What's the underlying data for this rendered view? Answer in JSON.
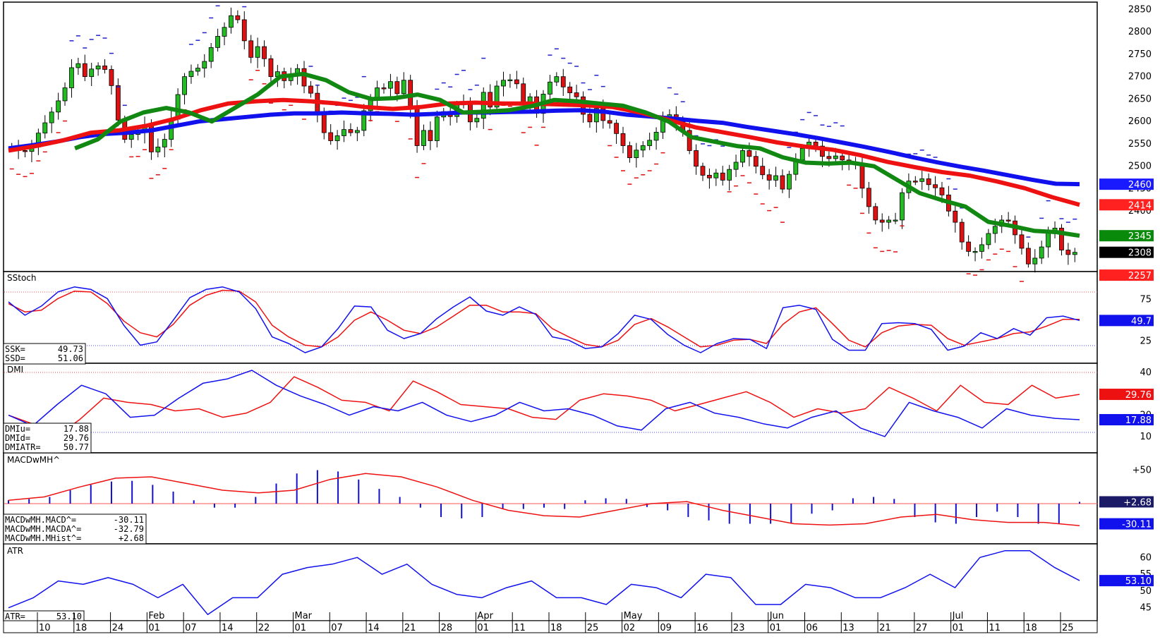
{
  "price_axis": {
    "ticks": [
      2850,
      2800,
      2750,
      2700,
      2650,
      2600,
      2550,
      2500,
      2450,
      2400
    ]
  },
  "stoch_axis": {
    "ticks": [
      75,
      25
    ]
  },
  "dmi_axis": {
    "ticks": [
      40,
      20,
      10
    ]
  },
  "macd_axis": {
    "ticks": [
      "+50"
    ]
  },
  "atr_axis": {
    "ticks": [
      60,
      55,
      50,
      45
    ]
  },
  "time_axis": {
    "day_labels": [
      "10",
      "18",
      "24",
      "01",
      "07",
      "14",
      "22",
      "01",
      "07",
      "14",
      "21",
      "28",
      "01",
      "11",
      "18",
      "25",
      "02",
      "09",
      "16",
      "23",
      "01",
      "06",
      "13",
      "21",
      "27",
      "01",
      "11",
      "18",
      "25"
    ],
    "month_labels": [
      "Feb",
      "Mar",
      "Apr",
      "May",
      "Jun",
      "Jul"
    ]
  },
  "panels": {
    "stoch": {
      "title": "SStoch",
      "legend": [
        {
          "name": "SSK=",
          "value": "49.73"
        },
        {
          "name": "SSD=",
          "value": "51.06"
        }
      ],
      "badge": "49.7"
    },
    "dmi": {
      "title": "DMI",
      "legend": [
        {
          "name": "DMIu=",
          "value": "17.88"
        },
        {
          "name": "DMId=",
          "value": "29.76"
        },
        {
          "name": "DMIATR=",
          "value": "50.77"
        }
      ],
      "badges": [
        "29.76",
        "17.88"
      ]
    },
    "macd": {
      "title": "MACDwMH^",
      "legend": [
        {
          "name": "MACDwMH.MACD^=",
          "value": "-30.11"
        },
        {
          "name": "MACDwMH.MACDA^=",
          "value": "-32.79"
        },
        {
          "name": "MACDwMH.MHist^=",
          "value": "+2.68"
        }
      ],
      "badges": [
        "+2.68",
        "-30.11"
      ]
    },
    "atr": {
      "title": "ATR",
      "legend": [
        {
          "name": "ATR=",
          "value": "53.10"
        }
      ],
      "badge": "53.10"
    }
  },
  "price_badges": [
    {
      "value": "2460",
      "color": "#1a1aff"
    },
    {
      "value": "2414",
      "color": "#ff2020"
    },
    {
      "value": "2345",
      "color": "#0a8a0a"
    },
    {
      "value": "2308",
      "color": "#000000"
    },
    {
      "value": "2257",
      "color": "#ff2020"
    }
  ],
  "colors": {
    "up": "#22bb22",
    "down": "#dd1111",
    "blue": "#1111ee",
    "red": "#ee1111",
    "green": "#118811",
    "sar": "#dd1111",
    "sar_hi": "#2222cc"
  },
  "chart_data": [
    {
      "type": "candlestick",
      "panel": "price",
      "ylim": [
        2265,
        2860
      ],
      "start_close": 2540,
      "closes": [
        2544,
        2535,
        2533,
        2543,
        2574,
        2597,
        2621,
        2646,
        2675,
        2720,
        2729,
        2700,
        2717,
        2724,
        2716,
        2680,
        2603,
        2560,
        2571,
        2575,
        2593,
        2532,
        2543,
        2560,
        2605,
        2660,
        2700,
        2712,
        2719,
        2734,
        2765,
        2790,
        2810,
        2836,
        2827,
        2780,
        2743,
        2767,
        2740,
        2700,
        2711,
        2691,
        2704,
        2718,
        2679,
        2663,
        2619,
        2575,
        2557,
        2568,
        2582,
        2575,
        2580,
        2624,
        2652,
        2675,
        2674,
        2689,
        2662,
        2692,
        2629,
        2546,
        2580,
        2557,
        2610,
        2622,
        2611,
        2637,
        2644,
        2599,
        2607,
        2665,
        2632,
        2679,
        2692,
        2693,
        2684,
        2640,
        2655,
        2618,
        2661,
        2688,
        2700,
        2677,
        2664,
        2655,
        2616,
        2599,
        2629,
        2602,
        2596,
        2573,
        2546,
        2519,
        2536,
        2546,
        2558,
        2576,
        2604,
        2615,
        2599,
        2580,
        2535,
        2500,
        2480,
        2474,
        2485,
        2469,
        2493,
        2509,
        2535,
        2522,
        2500,
        2481,
        2469,
        2479,
        2449,
        2482,
        2514,
        2540,
        2554,
        2545,
        2522,
        2517,
        2523,
        2514,
        2508,
        2504,
        2451,
        2410,
        2380,
        2375,
        2380,
        2380,
        2441,
        2467,
        2466,
        2472,
        2459,
        2452,
        2436,
        2400,
        2375,
        2331,
        2310,
        2310,
        2325,
        2350,
        2366,
        2380,
        2378,
        2347,
        2317,
        2282,
        2295,
        2320,
        2357,
        2362,
        2313,
        2303,
        2308
      ]
    },
    {
      "type": "line",
      "panel": "price",
      "name": "MA slow",
      "x_count": 158,
      "values": [
        2540,
        2547,
        2555,
        2565,
        2572,
        2575,
        2580,
        2590,
        2600,
        2605,
        2610,
        2615,
        2618,
        2618,
        2620,
        2618,
        2617,
        2615,
        2617,
        2620,
        2620,
        2621,
        2622,
        2624,
        2625,
        2622,
        2615,
        2611,
        2606,
        2601,
        2597,
        2588,
        2580,
        2572,
        2563,
        2553,
        2543,
        2532,
        2520,
        2509,
        2499,
        2490,
        2480,
        2470,
        2461,
        2460
      ]
    },
    {
      "type": "line",
      "panel": "price",
      "name": "MA mid",
      "values": [
        2535,
        2545,
        2558,
        2575,
        2580,
        2590,
        2605,
        2625,
        2640,
        2645,
        2648,
        2645,
        2640,
        2632,
        2628,
        2632,
        2640,
        2642,
        2640,
        2640,
        2638,
        2636,
        2632,
        2620,
        2604,
        2587,
        2576,
        2565,
        2553,
        2544,
        2537,
        2525,
        2510,
        2498,
        2487,
        2479,
        2466,
        2451,
        2431,
        2414
      ]
    },
    {
      "type": "line",
      "panel": "price",
      "name": "MA fast",
      "values": [
        2540,
        2560,
        2600,
        2620,
        2630,
        2620,
        2600,
        2630,
        2660,
        2700,
        2706,
        2692,
        2665,
        2650,
        2652,
        2660,
        2648,
        2620,
        2622,
        2625,
        2634,
        2648,
        2645,
        2640,
        2635,
        2620,
        2600,
        2565,
        2555,
        2545,
        2540,
        2520,
        2508,
        2506,
        2508,
        2500,
        2470,
        2440,
        2424,
        2410,
        2376,
        2367,
        2356,
        2353,
        2345
      ]
    },
    {
      "type": "line",
      "panel": "stoch",
      "name": "SSK",
      "ylim": [
        0,
        100
      ],
      "values": [
        72,
        56,
        67,
        84,
        90,
        87,
        76,
        44,
        20,
        24,
        50,
        77,
        87,
        90,
        84,
        64,
        30,
        22,
        11,
        18,
        40,
        67,
        66,
        38,
        28,
        34,
        52,
        66,
        78,
        61,
        56,
        66,
        57,
        30,
        26,
        16,
        18,
        34,
        56,
        51,
        33,
        20,
        11,
        22,
        28,
        27,
        16,
        65,
        68,
        63,
        27,
        14,
        14,
        46,
        47,
        46,
        39,
        14,
        19,
        35,
        28,
        40,
        32,
        53,
        55,
        49.73
      ]
    },
    {
      "type": "line",
      "panel": "stoch",
      "name": "SSD",
      "values": [
        70,
        60,
        62,
        76,
        85,
        84,
        70,
        49,
        35,
        30,
        45,
        68,
        80,
        86,
        85,
        72,
        44,
        30,
        20,
        18,
        30,
        50,
        60,
        50,
        38,
        34,
        42,
        55,
        68,
        68,
        60,
        60,
        58,
        40,
        30,
        21,
        18,
        26,
        45,
        52,
        42,
        30,
        18,
        20,
        26,
        27,
        22,
        45,
        60,
        65,
        46,
        26,
        18,
        35,
        43,
        45,
        44,
        28,
        20,
        24,
        28,
        34,
        36,
        43,
        51,
        51.06
      ]
    },
    {
      "type": "line",
      "panel": "dmi",
      "name": "DMIu",
      "ylim": [
        5,
        42
      ],
      "values": [
        20,
        15,
        25,
        34,
        30,
        19,
        20,
        28,
        35,
        37,
        41,
        34,
        29,
        25,
        20,
        24,
        22,
        26,
        20,
        17,
        20,
        26,
        22,
        23,
        20,
        15,
        13,
        23,
        26,
        21,
        19,
        16,
        14,
        19,
        22,
        14,
        10,
        26,
        22,
        19,
        14,
        23,
        20,
        18.5,
        17.88
      ]
    },
    {
      "type": "line",
      "panel": "dmi",
      "name": "DMId",
      "values": [
        20,
        16,
        10,
        18,
        28,
        26,
        25,
        22,
        23,
        19,
        21,
        26,
        38,
        33,
        27,
        26,
        22,
        36,
        31,
        25,
        24,
        23,
        19,
        18,
        27,
        30,
        29,
        27,
        22,
        25,
        28,
        31,
        26,
        19,
        23,
        21,
        23,
        33,
        28,
        22,
        34,
        26,
        25,
        34,
        28,
        29.76
      ]
    },
    {
      "type": "bar",
      "panel": "macd",
      "name": "MHist",
      "ylim": [
        -60,
        60
      ],
      "values": [
        5,
        7,
        10,
        20,
        28,
        33,
        34,
        28,
        18,
        5,
        -6,
        -6,
        10,
        30,
        45,
        50,
        48,
        36,
        22,
        10,
        -6,
        -20,
        -22,
        -20,
        -8,
        -8,
        -6,
        -8,
        5,
        8,
        7,
        -5,
        -10,
        -20,
        -25,
        -30,
        -30,
        -30,
        -30,
        -15,
        -10,
        8,
        10,
        7,
        -20,
        -28,
        -30,
        -20,
        -12,
        -20,
        -30,
        -30,
        2.68
      ]
    },
    {
      "type": "line",
      "panel": "macd",
      "name": "MACDA",
      "values": [
        5,
        10,
        25,
        38,
        40,
        30,
        20,
        16,
        20,
        36,
        45,
        40,
        25,
        5,
        -10,
        -18,
        -20,
        -10,
        0,
        3,
        -10,
        -20,
        -30,
        -32,
        -30,
        -20,
        -16,
        -24,
        -28,
        -28,
        -32.79
      ]
    },
    {
      "type": "line",
      "panel": "atr",
      "name": "ATR",
      "ylim": [
        42,
        63
      ],
      "values": [
        45,
        48,
        53,
        52,
        54,
        52,
        48,
        52,
        43,
        48,
        48,
        55,
        57,
        58,
        60,
        55,
        58,
        52,
        49,
        48,
        51,
        53,
        48,
        48,
        46,
        52,
        51,
        48,
        55,
        54,
        46,
        46,
        52,
        51,
        48,
        48,
        51,
        55,
        51,
        60,
        62,
        62,
        57,
        53.1
      ]
    }
  ]
}
